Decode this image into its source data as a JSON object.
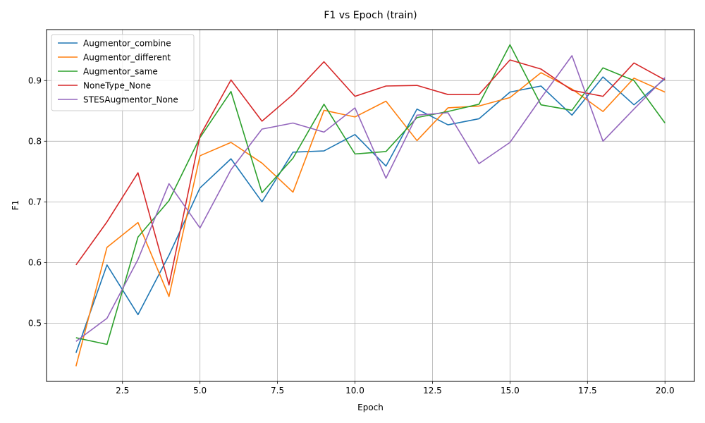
{
  "chart_data": {
    "type": "line",
    "title": "F1 vs Epoch (train)",
    "xlabel": "Epoch",
    "ylabel": "F1",
    "xlim": [
      0.05,
      20.95
    ],
    "ylim": [
      0.404,
      0.984
    ],
    "xticks": [
      2.5,
      5.0,
      7.5,
      10.0,
      12.5,
      15.0,
      17.5,
      20.0
    ],
    "xtick_labels": [
      "2.5",
      "5.0",
      "7.5",
      "10.0",
      "12.5",
      "15.0",
      "17.5",
      "20.0"
    ],
    "yticks": [
      0.5,
      0.6,
      0.7,
      0.8,
      0.9
    ],
    "ytick_labels": [
      "0.5",
      "0.6",
      "0.7",
      "0.8",
      "0.9"
    ],
    "grid": true,
    "legend_position": "top-left",
    "x": [
      1,
      2,
      3,
      4,
      5,
      6,
      7,
      8,
      9,
      10,
      11,
      12,
      13,
      14,
      15,
      16,
      17,
      18,
      19,
      20
    ],
    "series": [
      {
        "name": "Augmentor_combine",
        "color": "#1f77b4",
        "values": [
          0.451,
          0.596,
          0.514,
          0.612,
          0.723,
          0.771,
          0.7,
          0.782,
          0.784,
          0.811,
          0.759,
          0.853,
          0.827,
          0.837,
          0.881,
          0.891,
          0.843,
          0.906,
          0.86,
          0.903
        ]
      },
      {
        "name": "Augmentor_different",
        "color": "#ff7f0e",
        "values": [
          0.429,
          0.625,
          0.666,
          0.544,
          0.776,
          0.798,
          0.764,
          0.716,
          0.851,
          0.84,
          0.866,
          0.801,
          0.855,
          0.858,
          0.872,
          0.913,
          0.886,
          0.849,
          0.904,
          0.881
        ]
      },
      {
        "name": "Augmentor_same",
        "color": "#2ca02c",
        "values": [
          0.476,
          0.465,
          0.642,
          0.702,
          0.806,
          0.882,
          0.715,
          0.772,
          0.861,
          0.779,
          0.783,
          0.839,
          0.849,
          0.861,
          0.959,
          0.86,
          0.851,
          0.921,
          0.9,
          0.83
        ]
      },
      {
        "name": "NoneType_None",
        "color": "#d62728",
        "values": [
          0.596,
          0.667,
          0.748,
          0.563,
          0.809,
          0.901,
          0.833,
          0.877,
          0.931,
          0.874,
          0.891,
          0.892,
          0.877,
          0.877,
          0.934,
          0.919,
          0.884,
          0.874,
          0.929,
          0.901
        ]
      },
      {
        "name": "STESAugmentor_None",
        "color": "#9467bd",
        "values": [
          0.47,
          0.508,
          0.605,
          0.73,
          0.657,
          0.753,
          0.82,
          0.83,
          0.815,
          0.855,
          0.739,
          0.843,
          0.847,
          0.763,
          0.798,
          0.871,
          0.941,
          0.8,
          0.853,
          0.905
        ]
      }
    ]
  }
}
